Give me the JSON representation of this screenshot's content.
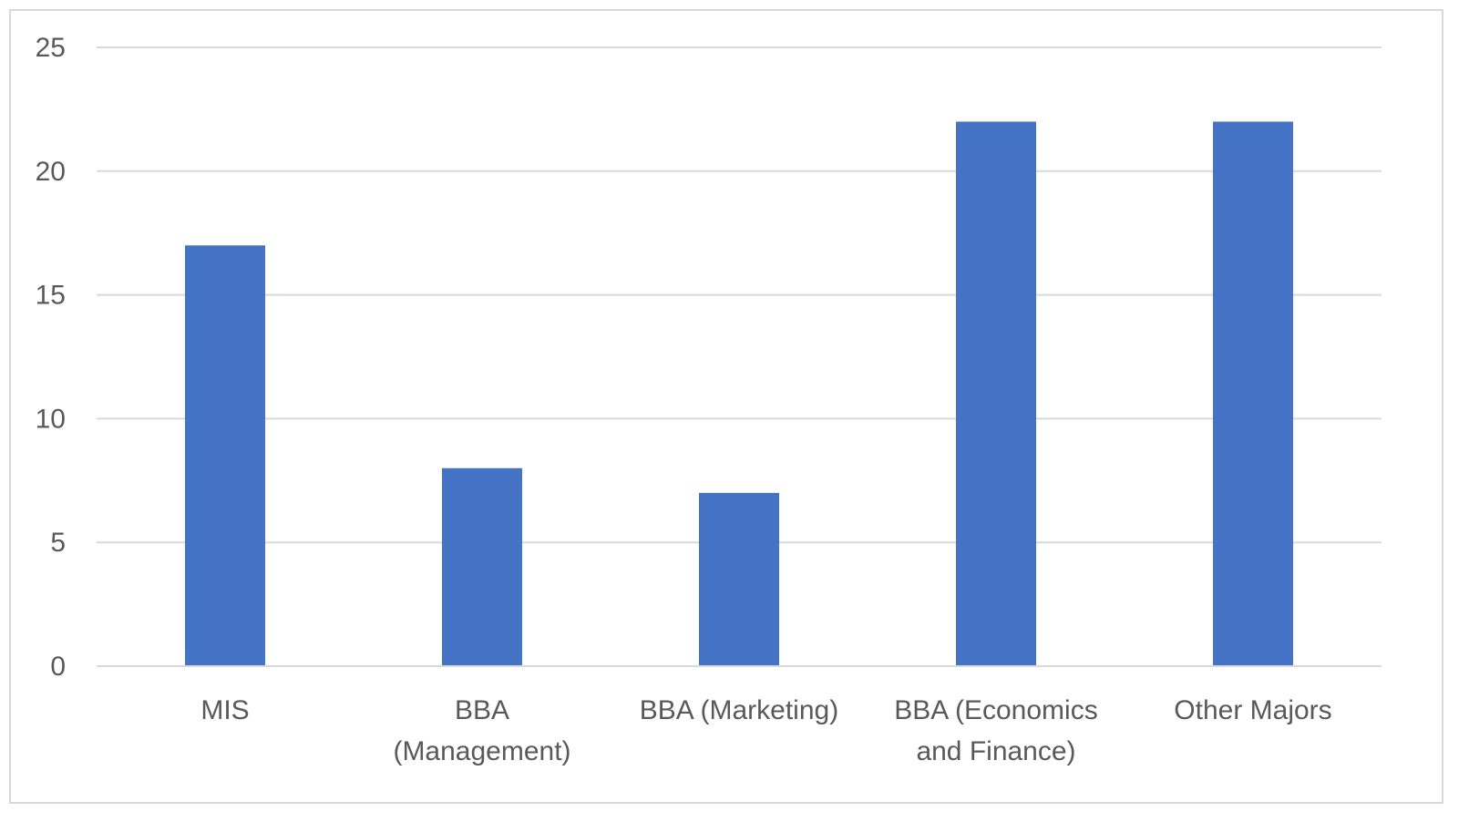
{
  "chart_data": {
    "type": "bar",
    "categories": [
      [
        "MIS"
      ],
      [
        "BBA",
        "(Management)"
      ],
      [
        "BBA (Marketing)"
      ],
      [
        "BBA (Economics",
        "and Finance)"
      ],
      [
        "Other Majors"
      ]
    ],
    "values": [
      17,
      8,
      7,
      22,
      22
    ],
    "ylim": [
      0,
      25
    ],
    "yticks": [
      0,
      5,
      10,
      15,
      20,
      25
    ],
    "grid": true,
    "bar_color": "#4472c4",
    "grid_color": "#d9d9d9",
    "text_color": "#595959"
  }
}
